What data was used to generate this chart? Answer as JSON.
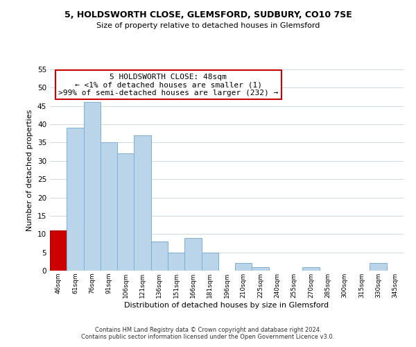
{
  "title": "5, HOLDSWORTH CLOSE, GLEMSFORD, SUDBURY, CO10 7SE",
  "subtitle": "Size of property relative to detached houses in Glemsford",
  "xlabel": "Distribution of detached houses by size in Glemsford",
  "ylabel": "Number of detached properties",
  "footer_line1": "Contains HM Land Registry data © Crown copyright and database right 2024.",
  "footer_line2": "Contains public sector information licensed under the Open Government Licence v3.0.",
  "annotation_line1": "5 HOLDSWORTH CLOSE: 48sqm",
  "annotation_line2": "← <1% of detached houses are smaller (1)",
  "annotation_line3": ">99% of semi-detached houses are larger (232) →",
  "bar_labels": [
    "46sqm",
    "61sqm",
    "76sqm",
    "91sqm",
    "106sqm",
    "121sqm",
    "136sqm",
    "151sqm",
    "166sqm",
    "181sqm",
    "196sqm",
    "210sqm",
    "225sqm",
    "240sqm",
    "255sqm",
    "270sqm",
    "285sqm",
    "300sqm",
    "315sqm",
    "330sqm",
    "345sqm"
  ],
  "bar_values": [
    11,
    39,
    46,
    35,
    32,
    37,
    8,
    5,
    9,
    5,
    0,
    2,
    1,
    0,
    0,
    1,
    0,
    0,
    0,
    2,
    0
  ],
  "highlight_bar_index": 0,
  "bar_color": "#bad4ea",
  "highlight_color": "#cc0000",
  "bar_edge_color": "#7bafd4",
  "highlight_edge_color": "#aa0000",
  "annotation_box_edge_color": "#cc0000",
  "background_color": "#ffffff",
  "grid_color": "#d0d8e0",
  "ylim": [
    0,
    55
  ],
  "yticks": [
    0,
    5,
    10,
    15,
    20,
    25,
    30,
    35,
    40,
    45,
    50,
    55
  ]
}
